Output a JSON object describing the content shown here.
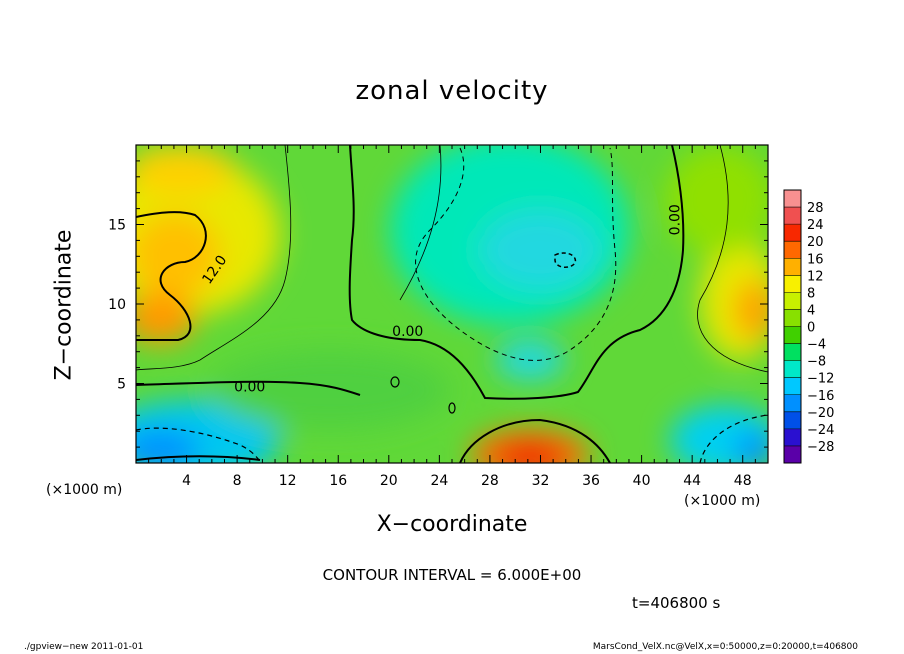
{
  "chart_data": {
    "type": "heatmap",
    "title": "zonal velocity",
    "xlabel": "X−coordinate",
    "ylabel": "Z−coordinate",
    "x_unit_label": "(×1000 m)",
    "y_unit_label": "(×1000 m)",
    "xlim": [
      0,
      50
    ],
    "ylim": [
      0,
      20
    ],
    "x_ticks": [
      4,
      8,
      12,
      16,
      20,
      24,
      28,
      32,
      36,
      40,
      44,
      48
    ],
    "y_ticks": [
      5,
      10,
      15
    ],
    "x_minor_step": 1,
    "y_minor_step": 1,
    "colorbar": {
      "levels": [
        -28,
        -24,
        -20,
        -16,
        -12,
        -8,
        -4,
        0,
        4,
        8,
        12,
        16,
        20,
        24,
        28
      ],
      "labels": [
        "28",
        "24",
        "20",
        "16",
        "12",
        "8",
        "4",
        "0",
        "−4",
        "−8",
        "−12",
        "−16",
        "−20",
        "−24",
        "−28"
      ],
      "colors": [
        "#5a00a8",
        "#2a10d0",
        "#0050e8",
        "#0090ff",
        "#00c8ff",
        "#00e8c8",
        "#00e060",
        "#40d000",
        "#88e000",
        "#c8f000",
        "#f8f000",
        "#ffb000",
        "#ff6800",
        "#f82800",
        "#f05050",
        "#f89090"
      ]
    },
    "contour_interval_text": "CONTOUR INTERVAL = 6.000E+00",
    "contour_labels": [
      {
        "text": "12.0",
        "x": 6.5,
        "z": 12.0
      },
      {
        "text": "0.00",
        "x": 21.5,
        "z": 8.0
      },
      {
        "text": "0.00",
        "x": 9.0,
        "z": 4.5
      },
      {
        "text": "0.00",
        "x": 43.0,
        "z": 15.3
      }
    ],
    "field_samples": [
      {
        "x": 3,
        "z": 13,
        "value": 15
      },
      {
        "x": 2,
        "z": 9,
        "value": 16
      },
      {
        "x": 6,
        "z": 17,
        "value": 13
      },
      {
        "x": 32,
        "z": 12,
        "value": -9
      },
      {
        "x": 33,
        "z": 13,
        "value": -10
      },
      {
        "x": 32,
        "z": 1,
        "value": 24
      },
      {
        "x": 48,
        "z": 9,
        "value": 16
      },
      {
        "x": 2,
        "z": 1,
        "value": -14
      },
      {
        "x": 47,
        "z": 1,
        "value": -12
      },
      {
        "x": 20,
        "z": 6,
        "value": 2
      }
    ]
  },
  "time_label": "t=406800 s",
  "footer_left": "./gpview−new  2011-01-01",
  "footer_right": "MarsCond_VelX.nc@VelX,x=0:50000,z=0:20000,t=406800"
}
